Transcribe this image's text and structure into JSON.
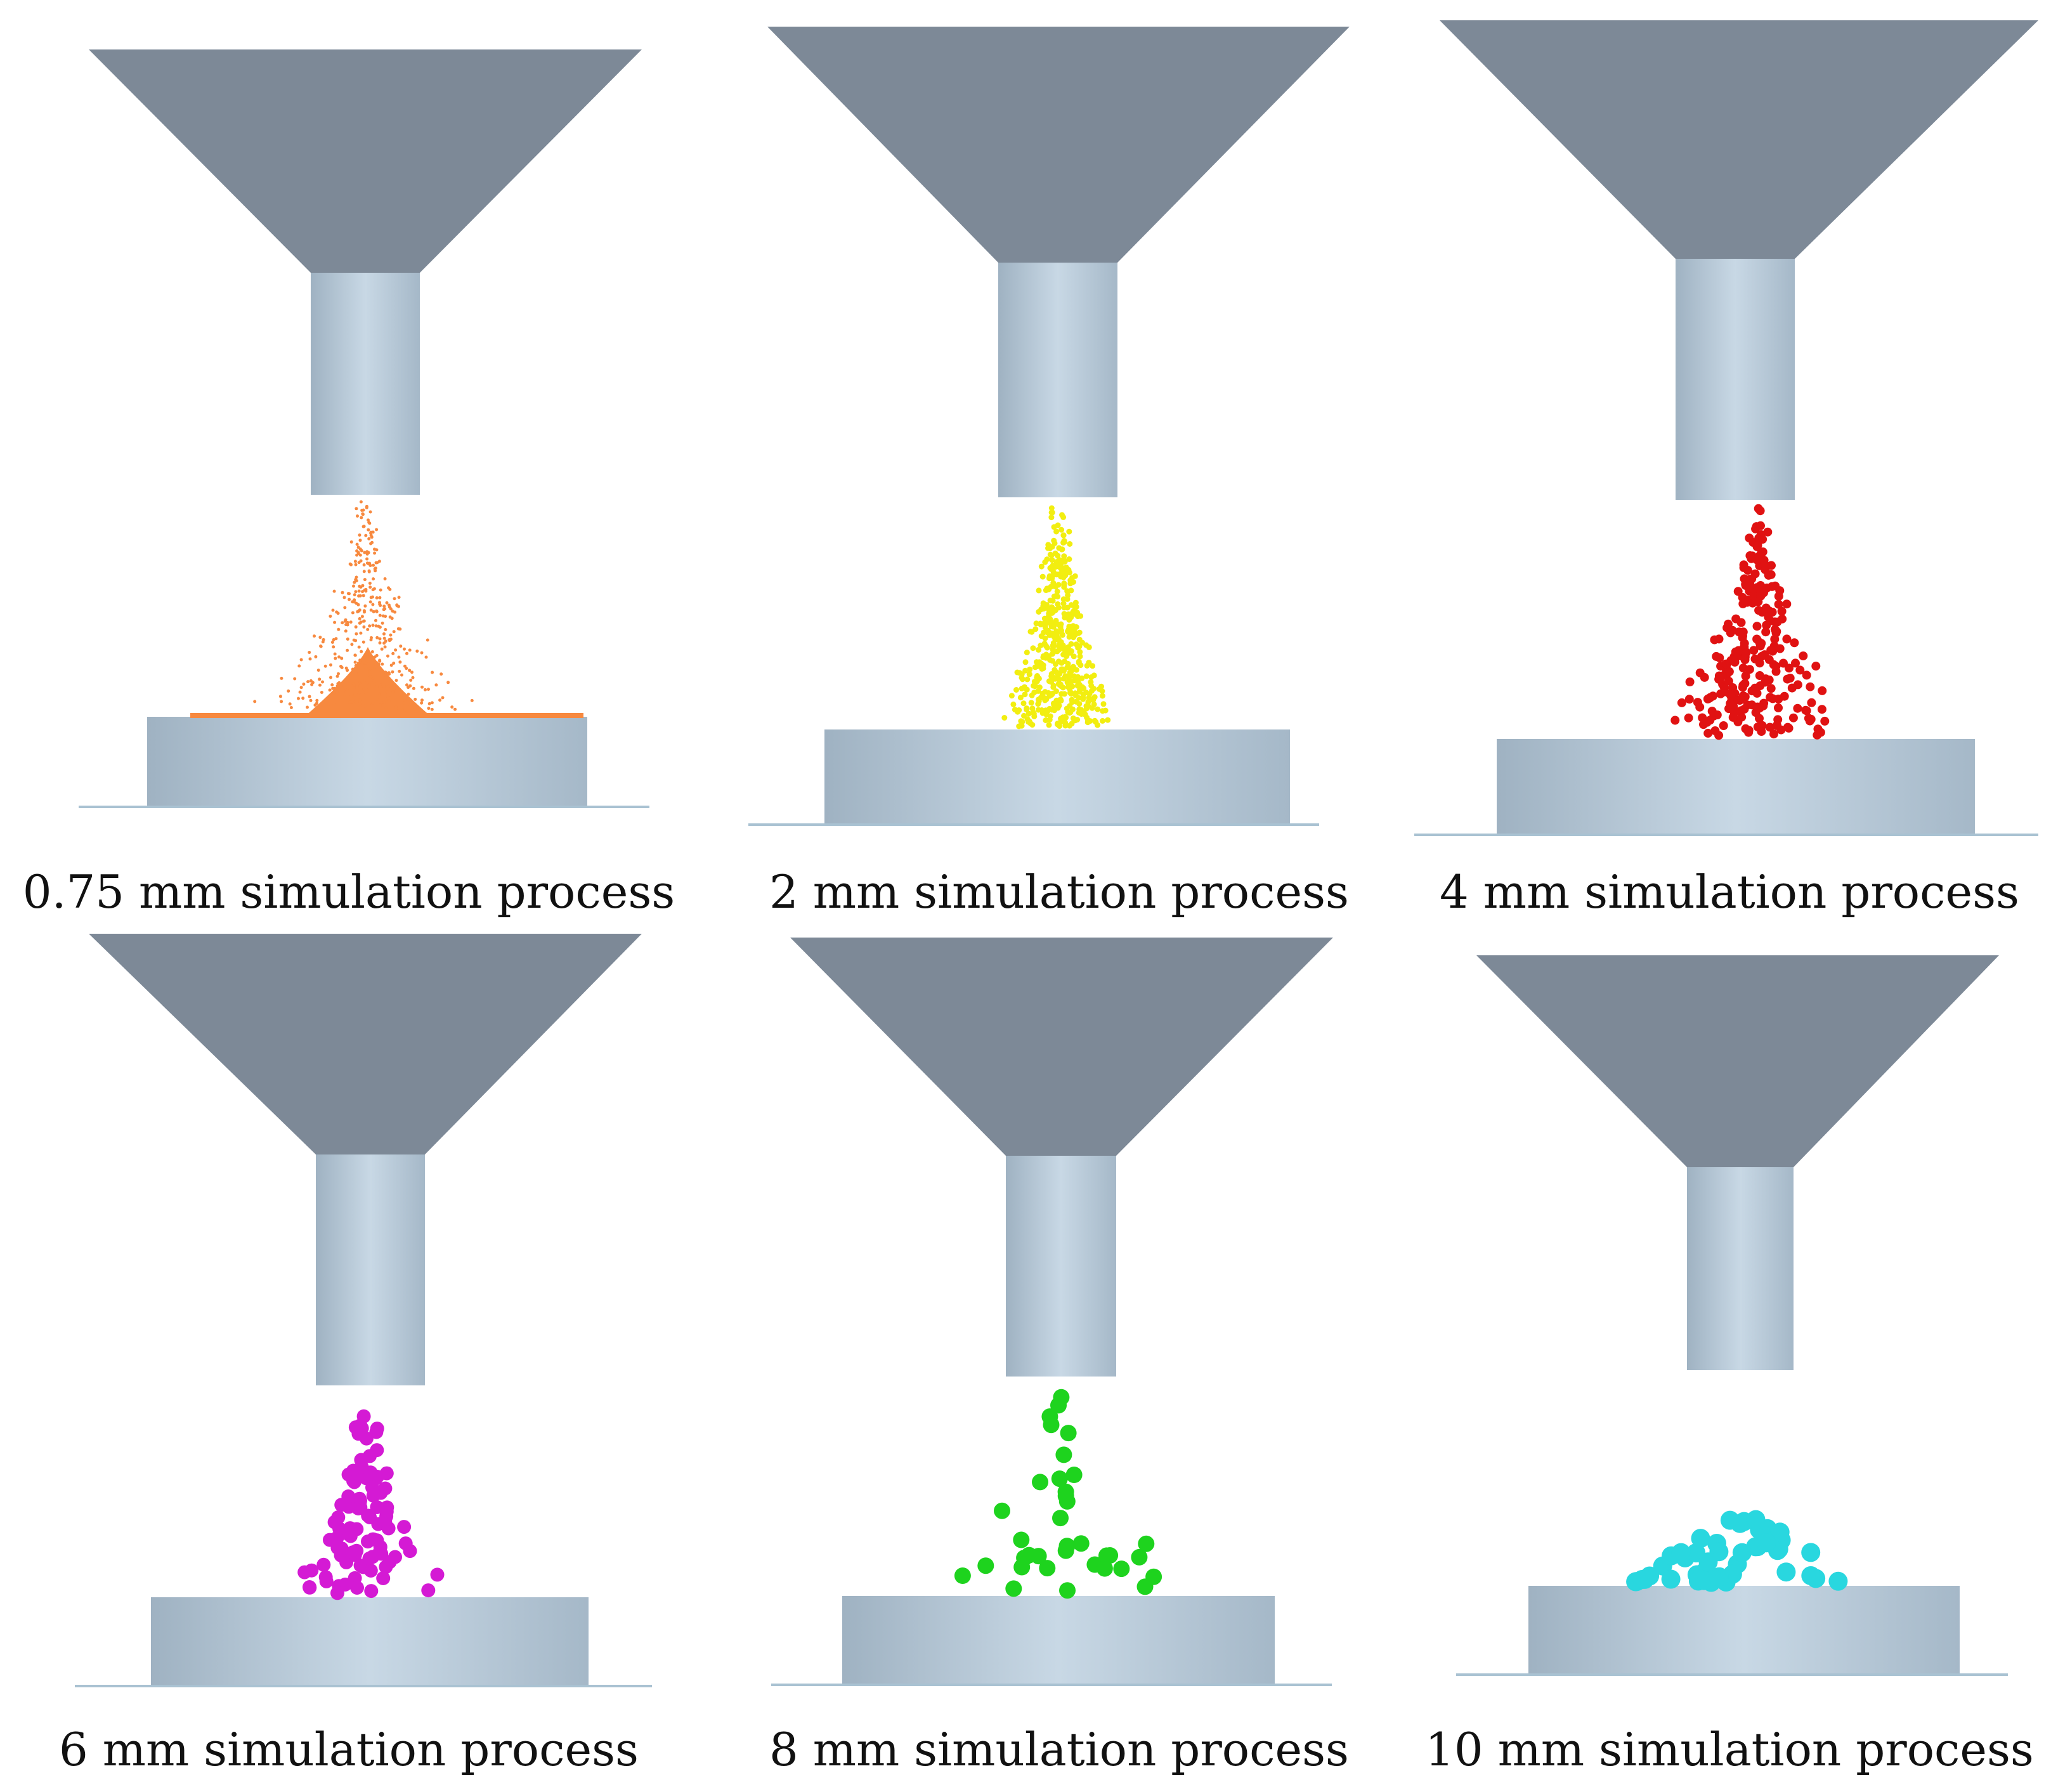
{
  "panels": [
    {
      "caption": "0.75 mm simulation process",
      "particle_color": "#f7893f"
    },
    {
      "caption": "2 mm simulation process",
      "particle_color": "#f2ee10"
    },
    {
      "caption": "4 mm simulation process",
      "particle_color": "#e01212"
    },
    {
      "caption": "6 mm simulation process",
      "particle_color": "#d41ad4"
    },
    {
      "caption": "8 mm simulation process",
      "particle_color": "#1ed31e"
    },
    {
      "caption": "10 mm simulation process",
      "particle_color": "#29d7df"
    }
  ],
  "colors": {
    "funnel": "#7c8896",
    "tube": "#b7cad8",
    "plate": "#b5c7d6",
    "ground": "#a9c2d2"
  }
}
